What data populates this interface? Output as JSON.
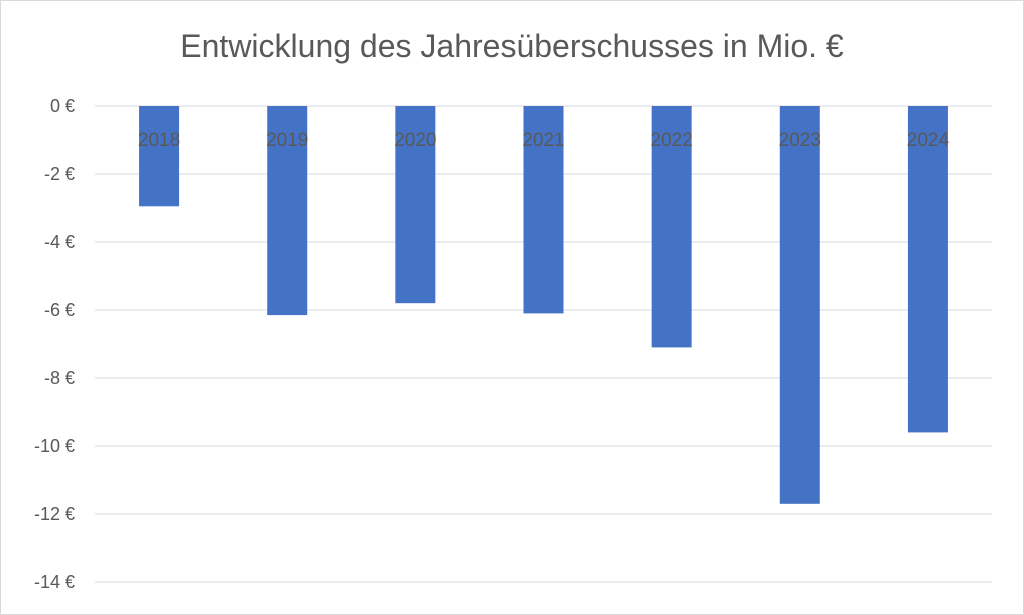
{
  "chart_data": {
    "type": "bar",
    "title": "Entwicklung des Jahresüberschusses in Mio. €",
    "categories": [
      "2018",
      "2019",
      "2020",
      "2021",
      "2022",
      "2023",
      "2024"
    ],
    "values": [
      -2.95,
      -6.15,
      -5.8,
      -6.1,
      -7.1,
      -11.7,
      -9.6
    ],
    "ylim": [
      -14,
      0
    ],
    "yticks": [
      0,
      -2,
      -4,
      -6,
      -8,
      -10,
      -12,
      -14
    ],
    "ytick_labels": [
      "0 €",
      "-2 €",
      "-4 €",
      "-6 €",
      "-8 €",
      "-10 €",
      "-12 €",
      "-14 €"
    ],
    "xlabel": "",
    "ylabel": "",
    "grid": true,
    "legend": "none",
    "bar_color": "#4472c4",
    "grid_color": "#d9d9d9",
    "text_color": "#595959"
  }
}
